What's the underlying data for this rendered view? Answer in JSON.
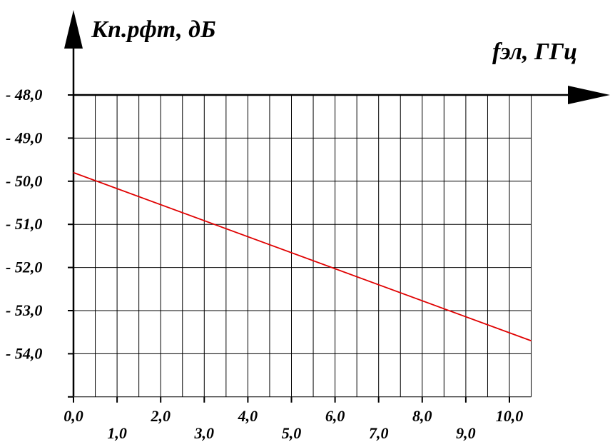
{
  "chart_data": {
    "type": "line",
    "ylabel": "Кп.рфт, дБ",
    "xlabel": "fэл, ГГц",
    "xlim": [
      0,
      10.5
    ],
    "ylim": [
      -55,
      -48
    ],
    "grid": true,
    "x_ticks": [
      "0,0",
      "1,0",
      "2,0",
      "3,0",
      "4,0",
      "5,0",
      "6,0",
      "7,0",
      "8,0",
      "9,0",
      "10,0"
    ],
    "y_ticks": [
      "- 48,0",
      "- 49,0",
      "- 50,0",
      "- 51,0",
      "- 52,0",
      "- 53,0",
      "- 54,0"
    ],
    "series": [
      {
        "color": "#e00000",
        "x": [
          0,
          10.5
        ],
        "y": [
          -49.8,
          -53.7
        ]
      }
    ]
  }
}
